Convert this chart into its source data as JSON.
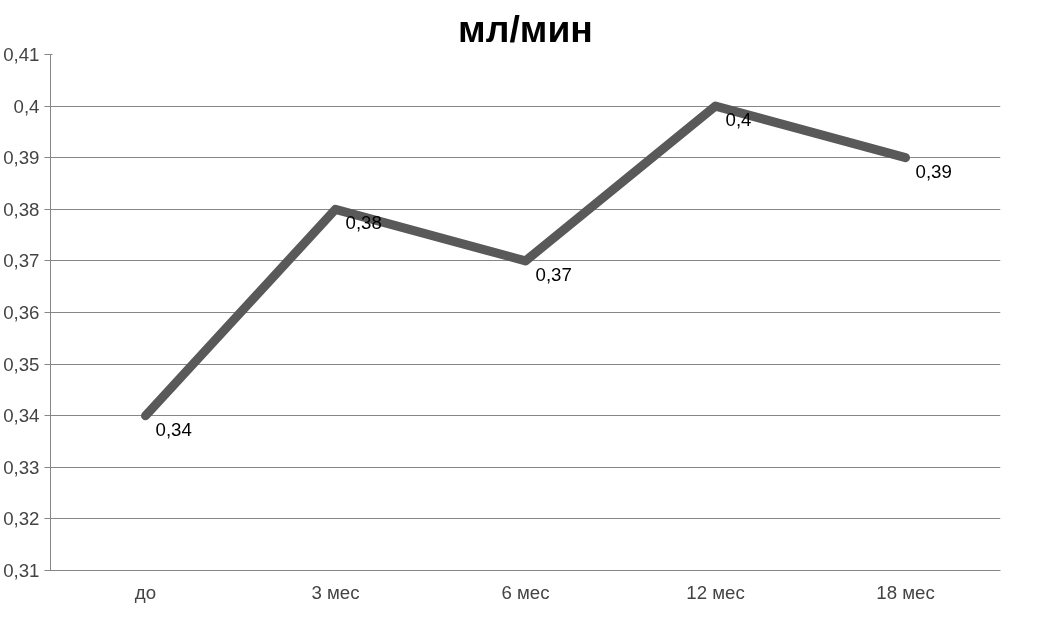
{
  "chart_data": {
    "type": "line",
    "title": "мл/мин",
    "categories": [
      "до",
      "3 мес",
      "6 мес",
      "12 мес",
      "18 мес"
    ],
    "series": [
      {
        "color": "#595959",
        "values": [
          0.34,
          0.38,
          0.37,
          0.4,
          0.39
        ],
        "value_labels": [
          "0,34",
          "0,38",
          "0,37",
          "0,4",
          "0,39"
        ]
      }
    ],
    "ylim": [
      0.31,
      0.41
    ],
    "yticks": [
      {
        "value": 0.31,
        "label": "0,31"
      },
      {
        "value": 0.32,
        "label": "0,32"
      },
      {
        "value": 0.33,
        "label": "0,33"
      },
      {
        "value": 0.34,
        "label": "0,34"
      },
      {
        "value": 0.35,
        "label": "0,35"
      },
      {
        "value": 0.36,
        "label": "0,36"
      },
      {
        "value": 0.37,
        "label": "0,37"
      },
      {
        "value": 0.38,
        "label": "0,38"
      },
      {
        "value": 0.39,
        "label": "0,39"
      },
      {
        "value": 0.4,
        "label": "0,4"
      },
      {
        "value": 0.41,
        "label": "0,41"
      }
    ],
    "grid": "y",
    "marker": "none",
    "line_style": "solid"
  }
}
